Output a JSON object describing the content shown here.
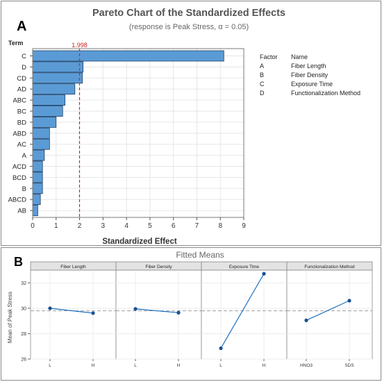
{
  "panel_a": {
    "label": "A",
    "title": "Pareto Chart of the Standardized Effects",
    "subtitle": "(response is Peak Stress, α = 0.05)",
    "term_header": "Term",
    "reference_label": "1.998",
    "legend": {
      "header_factor": "Factor",
      "header_name": "Name",
      "rows": [
        {
          "factor": "A",
          "name": "Fiber Length"
        },
        {
          "factor": "B",
          "name": "Fiber Density"
        },
        {
          "factor": "C",
          "name": "Exposure Time"
        },
        {
          "factor": "D",
          "name": "Functionalization Method"
        }
      ]
    }
  },
  "panel_b": {
    "label": "B",
    "title": "Fitted Means"
  },
  "colors": {
    "bar_fill": "#5b9bd5",
    "bar_stroke": "#1f3f66",
    "reference_line": "#e02020",
    "line_color": "#1a6fc0",
    "point_color": "#1a4f8f",
    "mean_line": "#a0a0a0",
    "strip_fill": "#e3e3e3"
  },
  "chart_data": [
    {
      "type": "bar",
      "orientation": "horizontal",
      "title": "Pareto Chart of the Standardized Effects",
      "subtitle": "(response is Peak Stress, α = 0.05)",
      "xlabel": "Standardized Effect",
      "ylabel": "Term",
      "categories": [
        "C",
        "D",
        "CD",
        "AD",
        "ABC",
        "BC",
        "BD",
        "ABD",
        "AC",
        "A",
        "ACD",
        "BCD",
        "B",
        "ABCD",
        "AB"
      ],
      "values": [
        8.15,
        2.15,
        2.12,
        1.8,
        1.38,
        1.28,
        1.0,
        0.72,
        0.72,
        0.5,
        0.42,
        0.42,
        0.42,
        0.33,
        0.22
      ],
      "xlim": [
        0,
        9
      ],
      "xticks": [
        0,
        1,
        2,
        3,
        4,
        5,
        6,
        7,
        8,
        9
      ],
      "reference_line": 1.998,
      "grid": true
    },
    {
      "type": "line",
      "title": "Fitted Means",
      "ylabel": "Mean of Peak Stress",
      "ylim": [
        26,
        33
      ],
      "yticks": [
        26,
        28,
        30,
        32
      ],
      "overall_mean": 29.8,
      "grid": true,
      "panels": [
        {
          "name": "Fiber Length",
          "categories": [
            "L",
            "H"
          ],
          "values": [
            30.0,
            29.62
          ]
        },
        {
          "name": "Fiber Density",
          "categories": [
            "L",
            "H"
          ],
          "values": [
            29.95,
            29.65
          ]
        },
        {
          "name": "Exposure Time",
          "categories": [
            "L",
            "H"
          ],
          "values": [
            26.85,
            32.72
          ]
        },
        {
          "name": "Functionalization Method",
          "categories": [
            "HNO3",
            "SDS"
          ],
          "values": [
            29.05,
            30.6
          ]
        }
      ]
    }
  ]
}
